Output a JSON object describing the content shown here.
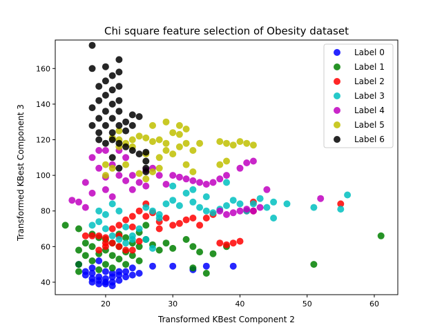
{
  "chart_data": {
    "type": "scatter",
    "title": "Chi square feature selection of Obesity dataset",
    "xlabel": "Transformed KBest Component 2",
    "ylabel": "Transformed KBest Component 3",
    "xlim": [
      12.5,
      63.5
    ],
    "ylim": [
      33,
      176
    ],
    "xticks": [
      20,
      30,
      40,
      50,
      60
    ],
    "yticks": [
      40,
      60,
      80,
      100,
      120,
      140,
      160
    ],
    "grid": false,
    "legend_position": "top-right",
    "series": [
      {
        "name": "Label 0",
        "color": "#0000ff",
        "points": [
          [
            18,
            40
          ],
          [
            19,
            39
          ],
          [
            20,
            39
          ],
          [
            21,
            40
          ],
          [
            22,
            41
          ],
          [
            23,
            43
          ],
          [
            24,
            44
          ],
          [
            25,
            45
          ],
          [
            17,
            44
          ],
          [
            18,
            42
          ],
          [
            19,
            41
          ],
          [
            20,
            42
          ],
          [
            21,
            43
          ],
          [
            22,
            44
          ],
          [
            20,
            40
          ],
          [
            19,
            43
          ],
          [
            17,
            46
          ],
          [
            18,
            48
          ],
          [
            16,
            50
          ],
          [
            19,
            52
          ],
          [
            21,
            45
          ],
          [
            23,
            46
          ],
          [
            24,
            48
          ],
          [
            22,
            46
          ],
          [
            27,
            49
          ],
          [
            30,
            49
          ],
          [
            33,
            47
          ],
          [
            35,
            49
          ],
          [
            39,
            49
          ],
          [
            18,
            45
          ],
          [
            20,
            46
          ],
          [
            21,
            38
          ]
        ]
      },
      {
        "name": "Label 1",
        "color": "#008000",
        "points": [
          [
            14,
            72
          ],
          [
            16,
            70
          ],
          [
            16,
            58
          ],
          [
            16,
            50
          ],
          [
            16,
            46
          ],
          [
            17,
            62
          ],
          [
            17,
            55
          ],
          [
            18,
            60
          ],
          [
            18,
            52
          ],
          [
            19,
            56
          ],
          [
            19,
            65
          ],
          [
            20,
            58
          ],
          [
            20,
            50
          ],
          [
            21,
            62
          ],
          [
            21,
            55
          ],
          [
            22,
            53
          ],
          [
            22,
            60
          ],
          [
            23,
            57
          ],
          [
            23,
            50
          ],
          [
            24,
            55
          ],
          [
            24,
            62
          ],
          [
            25,
            60
          ],
          [
            25,
            68
          ],
          [
            26,
            64
          ],
          [
            27,
            61
          ],
          [
            28,
            58
          ],
          [
            29,
            62
          ],
          [
            30,
            59
          ],
          [
            32,
            64
          ],
          [
            33,
            60
          ],
          [
            33,
            48
          ],
          [
            34,
            57
          ],
          [
            35,
            45
          ],
          [
            36,
            56
          ],
          [
            38,
            60
          ],
          [
            21,
            48
          ],
          [
            19,
            47
          ],
          [
            26,
            72
          ],
          [
            25,
            52
          ],
          [
            23,
            65
          ],
          [
            22,
            67
          ],
          [
            18,
            67
          ],
          [
            20,
            64
          ],
          [
            51,
            50
          ],
          [
            61,
            66
          ]
        ]
      },
      {
        "name": "Label 2",
        "color": "#ff0000",
        "points": [
          [
            17,
            66
          ],
          [
            18,
            66
          ],
          [
            19,
            66
          ],
          [
            20,
            65
          ],
          [
            20,
            62
          ],
          [
            21,
            62
          ],
          [
            22,
            60
          ],
          [
            23,
            58
          ],
          [
            24,
            58
          ],
          [
            19,
            58
          ],
          [
            20,
            60
          ],
          [
            21,
            70
          ],
          [
            22,
            72
          ],
          [
            23,
            75
          ],
          [
            24,
            77
          ],
          [
            25,
            80
          ],
          [
            26,
            84
          ],
          [
            27,
            79
          ],
          [
            28,
            74
          ],
          [
            29,
            76
          ],
          [
            30,
            72
          ],
          [
            31,
            73
          ],
          [
            32,
            75
          ],
          [
            33,
            76
          ],
          [
            34,
            72
          ],
          [
            35,
            76
          ],
          [
            36,
            78
          ],
          [
            37,
            62
          ],
          [
            38,
            61
          ],
          [
            39,
            62
          ],
          [
            40,
            63
          ],
          [
            41,
            80
          ],
          [
            42,
            80
          ],
          [
            42,
            85
          ],
          [
            55,
            84
          ],
          [
            26,
            77
          ],
          [
            24,
            71
          ],
          [
            28,
            70
          ],
          [
            25,
            63
          ],
          [
            22,
            66
          ]
        ]
      },
      {
        "name": "Label 3",
        "color": "#00bfbf",
        "points": [
          [
            18,
            72
          ],
          [
            19,
            74
          ],
          [
            20,
            70
          ],
          [
            21,
            66
          ],
          [
            22,
            64
          ],
          [
            23,
            62
          ],
          [
            24,
            64
          ],
          [
            25,
            70
          ],
          [
            26,
            82
          ],
          [
            27,
            80
          ],
          [
            28,
            78
          ],
          [
            29,
            84
          ],
          [
            30,
            86
          ],
          [
            31,
            83
          ],
          [
            32,
            90
          ],
          [
            33,
            85
          ],
          [
            34,
            82
          ],
          [
            35,
            80
          ],
          [
            36,
            79
          ],
          [
            37,
            81
          ],
          [
            38,
            83
          ],
          [
            39,
            86
          ],
          [
            40,
            84
          ],
          [
            41,
            80
          ],
          [
            42,
            84
          ],
          [
            43,
            87
          ],
          [
            44,
            82
          ],
          [
            45,
            76
          ],
          [
            45,
            85
          ],
          [
            47,
            84
          ],
          [
            51,
            82
          ],
          [
            55,
            81
          ],
          [
            56,
            89
          ],
          [
            30,
            94
          ],
          [
            33,
            92
          ],
          [
            28,
            76
          ],
          [
            22,
            80
          ],
          [
            26,
            64
          ],
          [
            27,
            59
          ],
          [
            24,
            66
          ],
          [
            20,
            78
          ],
          [
            21,
            84
          ],
          [
            35,
            88
          ],
          [
            38,
            96
          ],
          [
            19,
            80
          ],
          [
            23,
            71
          ]
        ]
      },
      {
        "name": "Label 4",
        "color": "#bf00bf",
        "points": [
          [
            15,
            86
          ],
          [
            16,
            85
          ],
          [
            17,
            82
          ],
          [
            17,
            96
          ],
          [
            18,
            90
          ],
          [
            18,
            110
          ],
          [
            19,
            114
          ],
          [
            19,
            104
          ],
          [
            20,
            99
          ],
          [
            20,
            92
          ],
          [
            21,
            106
          ],
          [
            21,
            88
          ],
          [
            22,
            100
          ],
          [
            23,
            97
          ],
          [
            24,
            92
          ],
          [
            25,
            96
          ],
          [
            26,
            103
          ],
          [
            27,
            104
          ],
          [
            28,
            100
          ],
          [
            29,
            95
          ],
          [
            30,
            100
          ],
          [
            31,
            99
          ],
          [
            32,
            98
          ],
          [
            33,
            97
          ],
          [
            34,
            96
          ],
          [
            35,
            95
          ],
          [
            36,
            96
          ],
          [
            37,
            80
          ],
          [
            38,
            78
          ],
          [
            39,
            79
          ],
          [
            40,
            80
          ],
          [
            41,
            81
          ],
          [
            42,
            80
          ],
          [
            43,
            82
          ],
          [
            44,
            92
          ],
          [
            40,
            104
          ],
          [
            41,
            107
          ],
          [
            42,
            108
          ],
          [
            37,
            98
          ],
          [
            38,
            100
          ],
          [
            52,
            87
          ],
          [
            23,
            110
          ],
          [
            22,
            114
          ],
          [
            26,
            94
          ],
          [
            24,
            100
          ],
          [
            20,
            114
          ]
        ]
      },
      {
        "name": "Label 5",
        "color": "#bfbf00",
        "points": [
          [
            20,
            106
          ],
          [
            20,
            100
          ],
          [
            21,
            104
          ],
          [
            22,
            120
          ],
          [
            22,
            116
          ],
          [
            23,
            118
          ],
          [
            24,
            120
          ],
          [
            25,
            122
          ],
          [
            26,
            121
          ],
          [
            27,
            119
          ],
          [
            28,
            120
          ],
          [
            29,
            118
          ],
          [
            30,
            124
          ],
          [
            31,
            128
          ],
          [
            32,
            126
          ],
          [
            30,
            112
          ],
          [
            31,
            116
          ],
          [
            32,
            118
          ],
          [
            33,
            114
          ],
          [
            29,
            114
          ],
          [
            28,
            104
          ],
          [
            27,
            102
          ],
          [
            26,
            98
          ],
          [
            25,
            101
          ],
          [
            27,
            128
          ],
          [
            29,
            130
          ],
          [
            31,
            123
          ],
          [
            37,
            106
          ],
          [
            38,
            108
          ],
          [
            37,
            119
          ],
          [
            38,
            118
          ],
          [
            39,
            117
          ],
          [
            40,
            119
          ],
          [
            41,
            118
          ],
          [
            42,
            117
          ],
          [
            32,
            106
          ],
          [
            33,
            102
          ],
          [
            24,
            116
          ],
          [
            22,
            125
          ],
          [
            21,
            121
          ],
          [
            23,
            106
          ],
          [
            26,
            112
          ],
          [
            28,
            110
          ],
          [
            34,
            118
          ]
        ]
      },
      {
        "name": "Label 6",
        "color": "#000000",
        "points": [
          [
            18,
            173
          ],
          [
            18,
            138
          ],
          [
            18,
            128
          ],
          [
            19,
            142
          ],
          [
            19,
            132
          ],
          [
            19,
            124
          ],
          [
            20,
            161
          ],
          [
            20,
            153
          ],
          [
            20,
            145
          ],
          [
            20,
            136
          ],
          [
            20,
            128
          ],
          [
            21,
            156
          ],
          [
            21,
            148
          ],
          [
            21,
            140
          ],
          [
            21,
            132
          ],
          [
            21,
            124
          ],
          [
            21,
            120
          ],
          [
            22,
            165
          ],
          [
            22,
            158
          ],
          [
            22,
            150
          ],
          [
            22,
            142
          ],
          [
            22,
            136
          ],
          [
            22,
            128
          ],
          [
            22,
            118
          ],
          [
            23,
            130
          ],
          [
            23,
            125
          ],
          [
            23,
            116
          ],
          [
            24,
            134
          ],
          [
            24,
            128
          ],
          [
            24,
            114
          ],
          [
            25,
            133
          ],
          [
            25,
            112
          ],
          [
            26,
            113
          ],
          [
            26,
            108
          ],
          [
            26,
            104
          ],
          [
            26,
            102
          ],
          [
            19,
            120
          ],
          [
            20,
            118
          ],
          [
            21,
            110
          ],
          [
            22,
            104
          ],
          [
            18,
            160
          ],
          [
            19,
            150
          ]
        ]
      }
    ]
  }
}
